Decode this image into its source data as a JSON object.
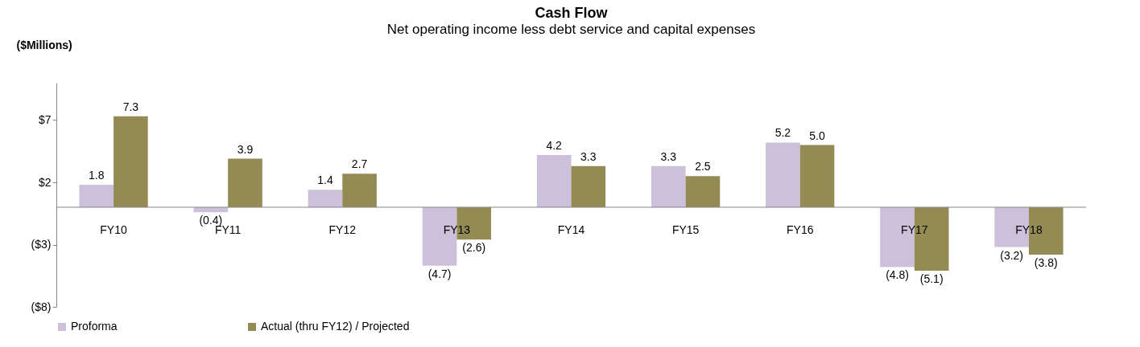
{
  "chart_data": {
    "type": "bar",
    "title": "Cash Flow",
    "subtitle": "Net operating income less debt service and capital expenses",
    "ylabel": "($Millions)",
    "categories": [
      "FY10",
      "FY11",
      "FY12",
      "FY13",
      "FY14",
      "FY15",
      "FY16",
      "FY17",
      "FY18"
    ],
    "series": [
      {
        "name": "Proforma",
        "color": "#ccc0da",
        "values": [
          1.8,
          -0.4,
          1.4,
          -4.7,
          4.2,
          3.3,
          5.2,
          -4.8,
          -3.2
        ],
        "value_labels": [
          "1.8",
          "(0.4)",
          "1.4",
          "(4.7)",
          "4.2",
          "3.3",
          "5.2",
          "(4.8)",
          "(3.2)"
        ]
      },
      {
        "name": "Actual (thru FY12) / Projected",
        "color": "#948a54",
        "values": [
          7.3,
          3.9,
          2.7,
          -2.6,
          3.3,
          2.5,
          5.0,
          -5.1,
          -3.8
        ],
        "value_labels": [
          "7.3",
          "3.9",
          "2.7",
          "(2.6)",
          "3.3",
          "2.5",
          "5.0",
          "(5.1)",
          "(3.8)"
        ]
      }
    ],
    "ylim": [
      -8,
      10
    ],
    "yticks": [
      {
        "value": 7,
        "label": "$7"
      },
      {
        "value": 2,
        "label": "$2"
      },
      {
        "value": -3,
        "label": "($3)"
      },
      {
        "value": -8,
        "label": "($8)"
      }
    ],
    "grid": false,
    "legend": "bottom"
  }
}
